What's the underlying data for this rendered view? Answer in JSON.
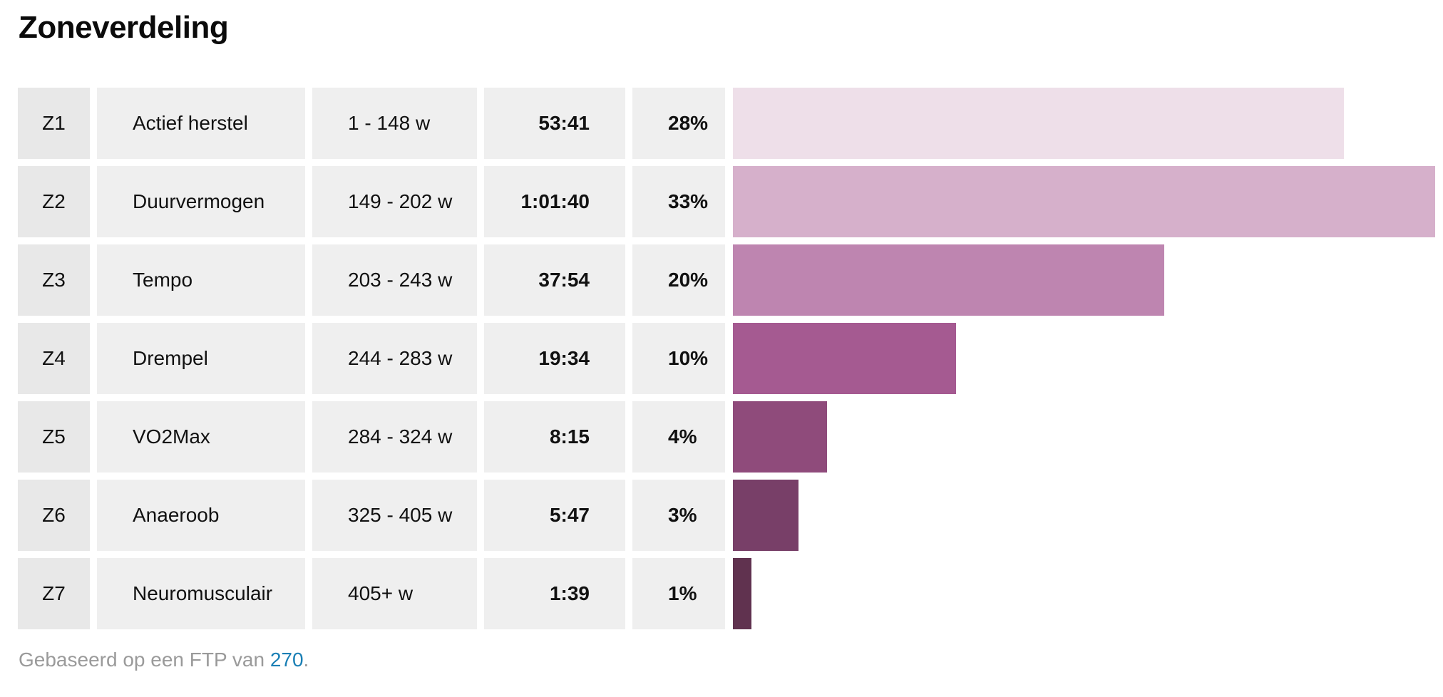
{
  "title": "Zoneverdeling",
  "chart_data": {
    "type": "bar",
    "orientation": "horizontal",
    "title": "Zoneverdeling",
    "columns": [
      "zone",
      "name",
      "power_range",
      "time",
      "percent"
    ],
    "rows": [
      {
        "zone": "Z1",
        "name": "Actief herstel",
        "range": "1 - 148 w",
        "time": "53:41",
        "percent_label": "28%",
        "percent": 28,
        "color": "#eedfe9"
      },
      {
        "zone": "Z2",
        "name": "Duurvermogen",
        "range": "149 - 202 w",
        "time": "1:01:40",
        "percent_label": "33%",
        "percent": 33,
        "color": "#d6b0cb"
      },
      {
        "zone": "Z3",
        "name": "Tempo",
        "range": "203 - 243 w",
        "time": "37:54",
        "percent_label": "20%",
        "percent": 20,
        "color": "#be85b0"
      },
      {
        "zone": "Z4",
        "name": "Drempel",
        "range": "244 - 283 w",
        "time": "19:34",
        "percent_label": "10%",
        "percent": 10,
        "color": "#a55a91"
      },
      {
        "zone": "Z5",
        "name": "VO2Max",
        "range": "284 - 324 w",
        "time": "8:15",
        "percent_label": "4%",
        "percent": 4,
        "color": "#8f4b7b"
      },
      {
        "zone": "Z6",
        "name": "Anaeroob",
        "range": "325 - 405 w",
        "time": "5:47",
        "percent_label": "3%",
        "percent": 3,
        "color": "#783f68"
      },
      {
        "zone": "Z7",
        "name": "Neuromusculair",
        "range": "405+ w",
        "time": "1:39",
        "percent_label": "1%",
        "percent": 1,
        "color": "#60324f"
      }
    ],
    "bar_values_seconds": [
      3221,
      3700,
      2274,
      1174,
      495,
      347,
      99
    ]
  },
  "footnote": {
    "prefix": "Gebaseerd op een FTP van ",
    "ftp_value": "270",
    "suffix": "."
  }
}
